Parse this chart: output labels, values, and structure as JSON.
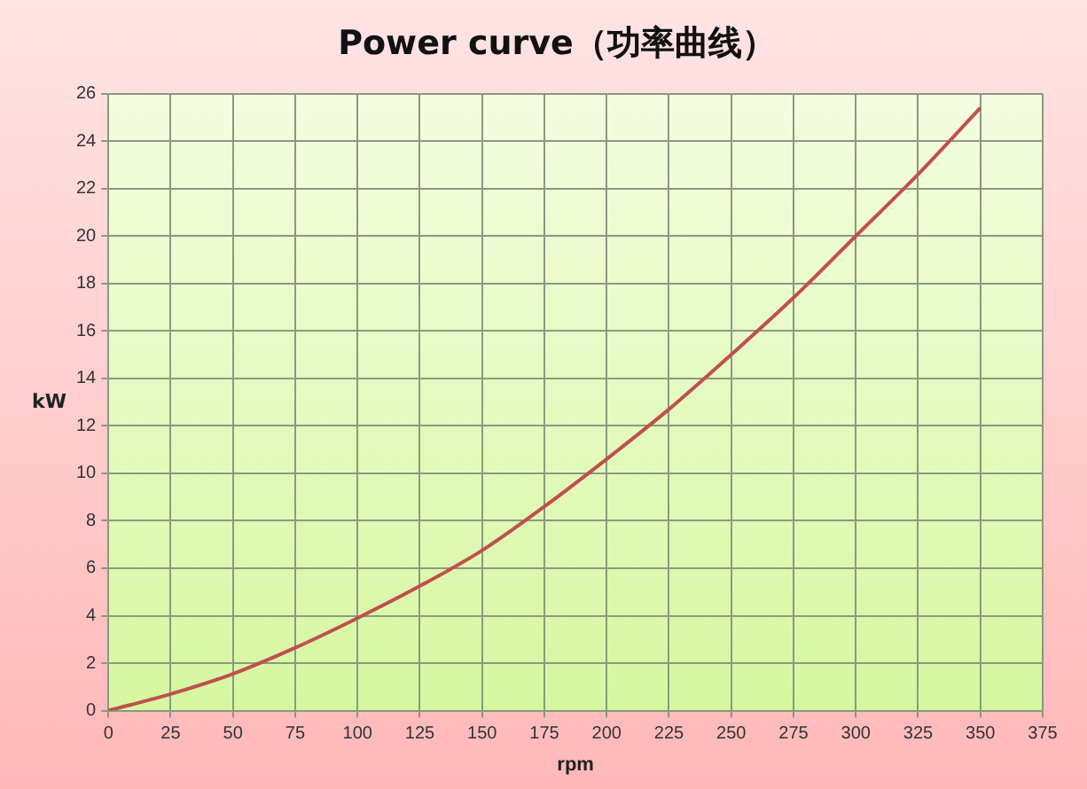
{
  "chart_data": {
    "type": "line",
    "title": "Power curve（功率曲线）",
    "xlabel": "rpm",
    "ylabel": "kW",
    "x": [
      0,
      25,
      50,
      75,
      100,
      125,
      150,
      175,
      200,
      225,
      250,
      275,
      300,
      325,
      350
    ],
    "series": [
      {
        "color": "#c0504d",
        "values": [
          0,
          0.7,
          1.55,
          2.65,
          3.9,
          5.25,
          6.75,
          8.6,
          10.6,
          12.7,
          15.0,
          17.4,
          20.0,
          22.6,
          25.4
        ]
      }
    ],
    "xlim": [
      0,
      375
    ],
    "xticks": [
      0,
      25,
      50,
      75,
      100,
      125,
      150,
      175,
      200,
      225,
      250,
      275,
      300,
      325,
      350,
      375
    ],
    "ylim": [
      0,
      26
    ],
    "yticks": [
      0,
      2,
      4,
      6,
      8,
      10,
      12,
      14,
      16,
      18,
      20,
      22,
      24,
      26
    ],
    "grid": true,
    "legend": false,
    "marker": "none",
    "line_style": "solid"
  }
}
